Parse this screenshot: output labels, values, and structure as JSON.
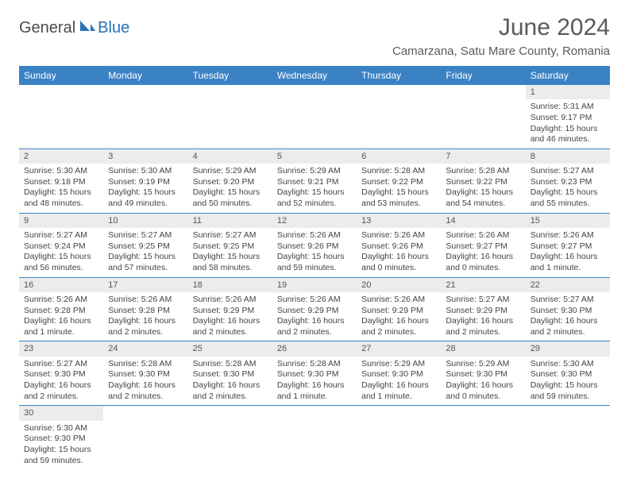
{
  "logo": {
    "general": "General",
    "blue": "Blue"
  },
  "title": "June 2024",
  "location": "Camarzana, Satu Mare County, Romania",
  "colors": {
    "header_bg": "#3b82c4",
    "header_text": "#ffffff",
    "daynum_bg": "#ececec",
    "border": "#3b82c4",
    "logo_blue": "#2a72b5",
    "logo_gray": "#4a4a4a",
    "body_text": "#444444"
  },
  "weekdays": [
    "Sunday",
    "Monday",
    "Tuesday",
    "Wednesday",
    "Thursday",
    "Friday",
    "Saturday"
  ],
  "days": {
    "1": {
      "sunrise": "5:31 AM",
      "sunset": "9:17 PM",
      "daylight": "15 hours and 46 minutes."
    },
    "2": {
      "sunrise": "5:30 AM",
      "sunset": "9:18 PM",
      "daylight": "15 hours and 48 minutes."
    },
    "3": {
      "sunrise": "5:30 AM",
      "sunset": "9:19 PM",
      "daylight": "15 hours and 49 minutes."
    },
    "4": {
      "sunrise": "5:29 AM",
      "sunset": "9:20 PM",
      "daylight": "15 hours and 50 minutes."
    },
    "5": {
      "sunrise": "5:29 AM",
      "sunset": "9:21 PM",
      "daylight": "15 hours and 52 minutes."
    },
    "6": {
      "sunrise": "5:28 AM",
      "sunset": "9:22 PM",
      "daylight": "15 hours and 53 minutes."
    },
    "7": {
      "sunrise": "5:28 AM",
      "sunset": "9:22 PM",
      "daylight": "15 hours and 54 minutes."
    },
    "8": {
      "sunrise": "5:27 AM",
      "sunset": "9:23 PM",
      "daylight": "15 hours and 55 minutes."
    },
    "9": {
      "sunrise": "5:27 AM",
      "sunset": "9:24 PM",
      "daylight": "15 hours and 56 minutes."
    },
    "10": {
      "sunrise": "5:27 AM",
      "sunset": "9:25 PM",
      "daylight": "15 hours and 57 minutes."
    },
    "11": {
      "sunrise": "5:27 AM",
      "sunset": "9:25 PM",
      "daylight": "15 hours and 58 minutes."
    },
    "12": {
      "sunrise": "5:26 AM",
      "sunset": "9:26 PM",
      "daylight": "15 hours and 59 minutes."
    },
    "13": {
      "sunrise": "5:26 AM",
      "sunset": "9:26 PM",
      "daylight": "16 hours and 0 minutes."
    },
    "14": {
      "sunrise": "5:26 AM",
      "sunset": "9:27 PM",
      "daylight": "16 hours and 0 minutes."
    },
    "15": {
      "sunrise": "5:26 AM",
      "sunset": "9:27 PM",
      "daylight": "16 hours and 1 minute."
    },
    "16": {
      "sunrise": "5:26 AM",
      "sunset": "9:28 PM",
      "daylight": "16 hours and 1 minute."
    },
    "17": {
      "sunrise": "5:26 AM",
      "sunset": "9:28 PM",
      "daylight": "16 hours and 2 minutes."
    },
    "18": {
      "sunrise": "5:26 AM",
      "sunset": "9:29 PM",
      "daylight": "16 hours and 2 minutes."
    },
    "19": {
      "sunrise": "5:26 AM",
      "sunset": "9:29 PM",
      "daylight": "16 hours and 2 minutes."
    },
    "20": {
      "sunrise": "5:26 AM",
      "sunset": "9:29 PM",
      "daylight": "16 hours and 2 minutes."
    },
    "21": {
      "sunrise": "5:27 AM",
      "sunset": "9:29 PM",
      "daylight": "16 hours and 2 minutes."
    },
    "22": {
      "sunrise": "5:27 AM",
      "sunset": "9:30 PM",
      "daylight": "16 hours and 2 minutes."
    },
    "23": {
      "sunrise": "5:27 AM",
      "sunset": "9:30 PM",
      "daylight": "16 hours and 2 minutes."
    },
    "24": {
      "sunrise": "5:28 AM",
      "sunset": "9:30 PM",
      "daylight": "16 hours and 2 minutes."
    },
    "25": {
      "sunrise": "5:28 AM",
      "sunset": "9:30 PM",
      "daylight": "16 hours and 2 minutes."
    },
    "26": {
      "sunrise": "5:28 AM",
      "sunset": "9:30 PM",
      "daylight": "16 hours and 1 minute."
    },
    "27": {
      "sunrise": "5:29 AM",
      "sunset": "9:30 PM",
      "daylight": "16 hours and 1 minute."
    },
    "28": {
      "sunrise": "5:29 AM",
      "sunset": "9:30 PM",
      "daylight": "16 hours and 0 minutes."
    },
    "29": {
      "sunrise": "5:30 AM",
      "sunset": "9:30 PM",
      "daylight": "15 hours and 59 minutes."
    },
    "30": {
      "sunrise": "5:30 AM",
      "sunset": "9:30 PM",
      "daylight": "15 hours and 59 minutes."
    }
  },
  "labels": {
    "sunrise": "Sunrise:",
    "sunset": "Sunset:",
    "daylight": "Daylight:"
  },
  "layout": {
    "first_weekday_index": 6,
    "num_days": 30,
    "cell_font_size": 10.5,
    "header_font_size": 12,
    "title_font_size": 30,
    "location_font_size": 15
  }
}
